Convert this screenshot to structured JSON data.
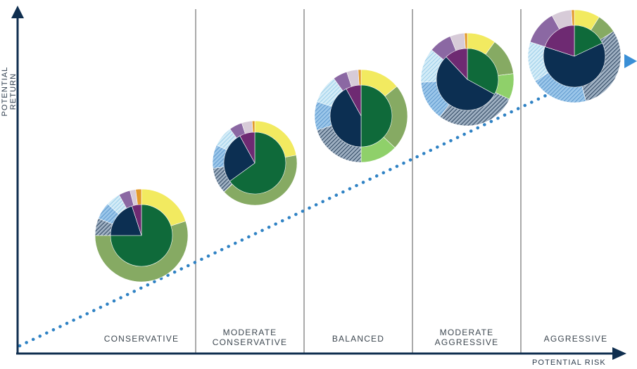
{
  "axes": {
    "x_label": "POTENTIAL RISK",
    "y_label": "POTENTIAL RETURN"
  },
  "colors": {
    "axis": "#0f2e4f",
    "divider": "#555555",
    "trend_dots": "#2f82c4",
    "trend_arrow": "#3a8fd6",
    "label_text": "#3d4750",
    "segment_palette": {
      "dark_green": "#0f6a3a",
      "mid_green": "#86aa63",
      "light_green": "#8fd06a",
      "yellow": "#f2ea60",
      "orange": "#e39a2a",
      "navy": "#0c2f52",
      "hatched_navy": "#3e5a78",
      "mid_blue": "#5f9fd4",
      "light_blue": "#a7d6ee",
      "purple_dark": "#6e2a72",
      "purple_mid": "#8b68a3",
      "lavender": "#d7cbd8"
    }
  },
  "chart_data": {
    "type": "diagram",
    "description_of_axes": "qualitative risk/return",
    "categories": [
      "CONSERVATIVE",
      "MODERATE\nCONSERVATIVE",
      "BALANCED",
      "MODERATE\nAGGRESSIVE",
      "AGGRESSIVE"
    ],
    "portfolios": [
      {
        "label": "CONSERVATIVE",
        "outer": [
          {
            "color": "yellow",
            "value": 20
          },
          {
            "color": "mid_green",
            "value": 55
          },
          {
            "color": "hatched_navy",
            "value": 6
          },
          {
            "color": "mid_blue",
            "value": 6
          },
          {
            "color": "light_blue",
            "value": 5
          },
          {
            "color": "purple_mid",
            "value": 4
          },
          {
            "color": "lavender",
            "value": 2
          },
          {
            "color": "orange",
            "value": 2
          }
        ],
        "inner": [
          {
            "color": "dark_green",
            "value": 75
          },
          {
            "color": "navy",
            "value": 20
          },
          {
            "color": "purple_dark",
            "value": 5
          }
        ]
      },
      {
        "label": "MODERATE CONSERVATIVE",
        "outer": [
          {
            "color": "yellow",
            "value": 22
          },
          {
            "color": "mid_green",
            "value": 41
          },
          {
            "color": "hatched_navy",
            "value": 10
          },
          {
            "color": "mid_blue",
            "value": 9
          },
          {
            "color": "light_blue",
            "value": 8
          },
          {
            "color": "purple_mid",
            "value": 5
          },
          {
            "color": "lavender",
            "value": 4
          },
          {
            "color": "orange",
            "value": 1
          }
        ],
        "inner": [
          {
            "color": "dark_green",
            "value": 65
          },
          {
            "color": "navy",
            "value": 27
          },
          {
            "color": "purple_dark",
            "value": 8
          }
        ]
      },
      {
        "label": "BALANCED",
        "outer": [
          {
            "color": "yellow",
            "value": 14
          },
          {
            "color": "mid_green",
            "value": 23
          },
          {
            "color": "light_green",
            "value": 13
          },
          {
            "color": "hatched_navy",
            "value": 20
          },
          {
            "color": "mid_blue",
            "value": 10
          },
          {
            "color": "light_blue",
            "value": 10
          },
          {
            "color": "purple_mid",
            "value": 5
          },
          {
            "color": "lavender",
            "value": 4
          },
          {
            "color": "orange",
            "value": 1
          }
        ],
        "inner": [
          {
            "color": "dark_green",
            "value": 50
          },
          {
            "color": "navy",
            "value": 42
          },
          {
            "color": "purple_dark",
            "value": 8
          }
        ]
      },
      {
        "label": "MODERATE AGGRESSIVE",
        "outer": [
          {
            "color": "yellow",
            "value": 10
          },
          {
            "color": "mid_green",
            "value": 13
          },
          {
            "color": "light_green",
            "value": 9
          },
          {
            "color": "hatched_navy",
            "value": 28
          },
          {
            "color": "mid_blue",
            "value": 14
          },
          {
            "color": "light_blue",
            "value": 12
          },
          {
            "color": "purple_mid",
            "value": 8
          },
          {
            "color": "lavender",
            "value": 5
          },
          {
            "color": "orange",
            "value": 1
          }
        ],
        "inner": [
          {
            "color": "dark_green",
            "value": 33
          },
          {
            "color": "navy",
            "value": 55
          },
          {
            "color": "purple_dark",
            "value": 12
          }
        ]
      },
      {
        "label": "AGGRESSIVE",
        "outer": [
          {
            "color": "yellow",
            "value": 9
          },
          {
            "color": "mid_green",
            "value": 7
          },
          {
            "color": "hatched_navy",
            "value": 30
          },
          {
            "color": "mid_blue",
            "value": 20
          },
          {
            "color": "light_blue",
            "value": 14
          },
          {
            "color": "purple_mid",
            "value": 12
          },
          {
            "color": "lavender",
            "value": 7
          },
          {
            "color": "orange",
            "value": 1
          }
        ],
        "inner": [
          {
            "color": "dark_green",
            "value": 18
          },
          {
            "color": "navy",
            "value": 62
          },
          {
            "color": "purple_dark",
            "value": 20
          }
        ]
      }
    ]
  }
}
